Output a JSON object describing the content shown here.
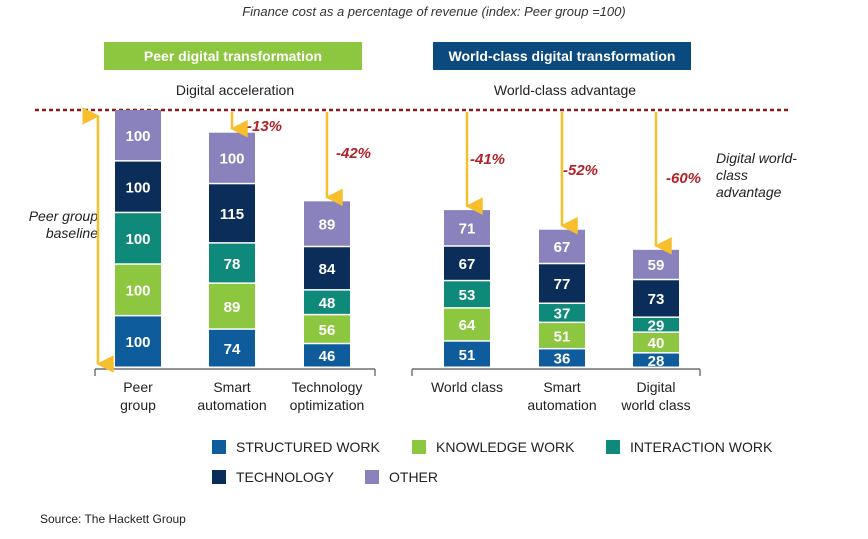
{
  "title": "Finance cost as a percentage of revenue (index: Peer group =100)",
  "headers": {
    "left": "Peer digital transformation",
    "right": "World-class digital transformation",
    "left_color": "#8dc63f",
    "right_color": "#0b4a7f"
  },
  "subheaders": {
    "left": "Digital acceleration",
    "right": "World-class advantage"
  },
  "baseline_label": "Peer group baseline",
  "dwca_label": "Digital world-class advantage",
  "source": "Source: The Hackett Group",
  "colors": {
    "structured": "#0f5c9c",
    "knowledge": "#8dc63f",
    "interaction": "#0f8a7a",
    "technology": "#0b2d5a",
    "other": "#8a82bd",
    "arrow": "#f7bf2b",
    "pct": "#b1232a",
    "dotted": "#8b1a1a"
  },
  "chart_data": {
    "type": "bar",
    "stacked": true,
    "categories": [
      "Peer group",
      "Smart automation",
      "Technology optimization",
      "World class",
      "Smart automation",
      "Digital world class"
    ],
    "series": [
      {
        "name": "STRUCTURED WORK",
        "key": "structured",
        "values": [
          100,
          74,
          46,
          51,
          36,
          28
        ]
      },
      {
        "name": "KNOWLEDGE WORK",
        "key": "knowledge",
        "values": [
          100,
          89,
          56,
          64,
          51,
          40
        ]
      },
      {
        "name": "INTERACTION WORK",
        "key": "interaction",
        "values": [
          100,
          78,
          48,
          53,
          37,
          29
        ]
      },
      {
        "name": "TECHNOLOGY",
        "key": "technology",
        "values": [
          100,
          115,
          84,
          67,
          77,
          73
        ]
      },
      {
        "name": "OTHER",
        "key": "other",
        "values": [
          100,
          100,
          89,
          71,
          67,
          59
        ]
      }
    ],
    "annotations": [
      "",
      "-13%",
      "-42%",
      "-41%",
      "-52%",
      "-60%"
    ],
    "legend": "bottom"
  }
}
